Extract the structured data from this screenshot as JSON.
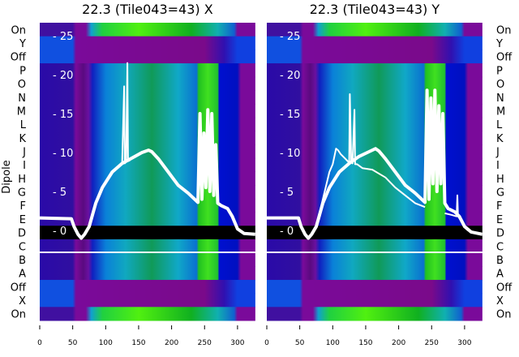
{
  "chart_data": [
    {
      "type": "heatmap",
      "title": "22.3 (Tile043=43) X",
      "ylabel": "Dipole",
      "row_labels": [
        "On",
        "Y",
        "Off",
        "P",
        "O",
        "N",
        "M",
        "L",
        "K",
        "J",
        "I",
        "H",
        "G",
        "F",
        "E",
        "D",
        "C",
        "B",
        "A",
        "Off",
        "X",
        "On"
      ],
      "xlim": [
        0,
        327
      ],
      "x_ticks": [
        "0",
        "50",
        "100",
        "150",
        "200",
        "250",
        "300"
      ],
      "overlay_ylim": [
        -2.5,
        27
      ],
      "overlay_y_ticks": [
        "- 25",
        "- 20",
        "- 15",
        "- 10",
        "- 5",
        "- 0"
      ],
      "series": [
        {
          "name": "main",
          "x": [
            0,
            48,
            52,
            58,
            63,
            68,
            75,
            85,
            95,
            110,
            125,
            140,
            155,
            165,
            170,
            180,
            195,
            210,
            225,
            240,
            243,
            246,
            249,
            252,
            255,
            258,
            261,
            264,
            267,
            270,
            275,
            285,
            292,
            300,
            310,
            327
          ],
          "y": [
            1.6,
            1.5,
            0.5,
            -0.5,
            -1,
            -0.5,
            0.5,
            3.5,
            5.5,
            7.5,
            8.6,
            9.3,
            10,
            10.3,
            10.1,
            9.2,
            7.5,
            5.8,
            4.8,
            3.6,
            15,
            4,
            12.5,
            5.5,
            15.5,
            5,
            15,
            4.5,
            11,
            3.5,
            3.2,
            2.8,
            1.8,
            0.2,
            -0.4,
            -0.5
          ]
        },
        {
          "name": "spike",
          "x": [
            125,
            128,
            129,
            131,
            133,
            134,
            137
          ],
          "y": [
            8.5,
            18.5,
            8.6,
            8.8,
            21.5,
            8.9,
            9.0
          ]
        }
      ]
    },
    {
      "type": "heatmap",
      "title": "22.3 (Tile043=43) Y",
      "row_labels": [
        "On",
        "Y",
        "Off",
        "P",
        "O",
        "N",
        "M",
        "L",
        "K",
        "J",
        "I",
        "H",
        "G",
        "F",
        "E",
        "D",
        "C",
        "B",
        "A",
        "Off",
        "X",
        "On"
      ],
      "xlim": [
        0,
        327
      ],
      "x_ticks": [
        "0",
        "50",
        "100",
        "150",
        "200",
        "250",
        "300"
      ],
      "overlay_ylim": [
        -2.5,
        27
      ],
      "overlay_y_ticks": [
        "- 25",
        "- 20",
        "- 15",
        "- 10",
        "- 5",
        "- 0"
      ],
      "series": [
        {
          "name": "main",
          "x": [
            0,
            48,
            52,
            58,
            63,
            68,
            75,
            85,
            95,
            110,
            125,
            140,
            155,
            165,
            170,
            180,
            195,
            210,
            225,
            240,
            243,
            246,
            249,
            252,
            255,
            258,
            261,
            264,
            267,
            270,
            275,
            285,
            292,
            300,
            310,
            327
          ],
          "y": [
            1.6,
            1.6,
            0.5,
            -0.5,
            -1,
            -0.5,
            0.5,
            3.5,
            5.5,
            7.5,
            8.6,
            9.5,
            10.1,
            10.5,
            10.2,
            9.2,
            7.5,
            5.8,
            4.8,
            3.6,
            18,
            4,
            17,
            6,
            18,
            5,
            16,
            6,
            15,
            3.5,
            2.8,
            2.4,
            1.8,
            0.5,
            -0.2,
            -0.5
          ]
        },
        {
          "name": "secondary",
          "x": [
            75,
            85,
            95,
            100,
            105,
            108,
            112,
            118,
            125,
            126,
            128,
            130,
            133,
            134,
            137,
            145,
            160,
            180,
            195,
            210,
            225,
            240
          ],
          "y": [
            0.5,
            4,
            7.5,
            8.5,
            10.5,
            10.3,
            9.8,
            9.3,
            8.7,
            17.5,
            8.8,
            8.6,
            15.5,
            8.5,
            8.5,
            8.0,
            7.8,
            6.8,
            5.5,
            4.5,
            3.5,
            3.0
          ]
        },
        {
          "name": "tail-spike",
          "x": [
            270,
            280,
            288,
            289,
            290,
            291,
            295,
            300,
            305
          ],
          "y": [
            2.2,
            2.0,
            1.8,
            4.5,
            1.8,
            1.7,
            1.2,
            0.4,
            0.0
          ]
        }
      ]
    }
  ]
}
